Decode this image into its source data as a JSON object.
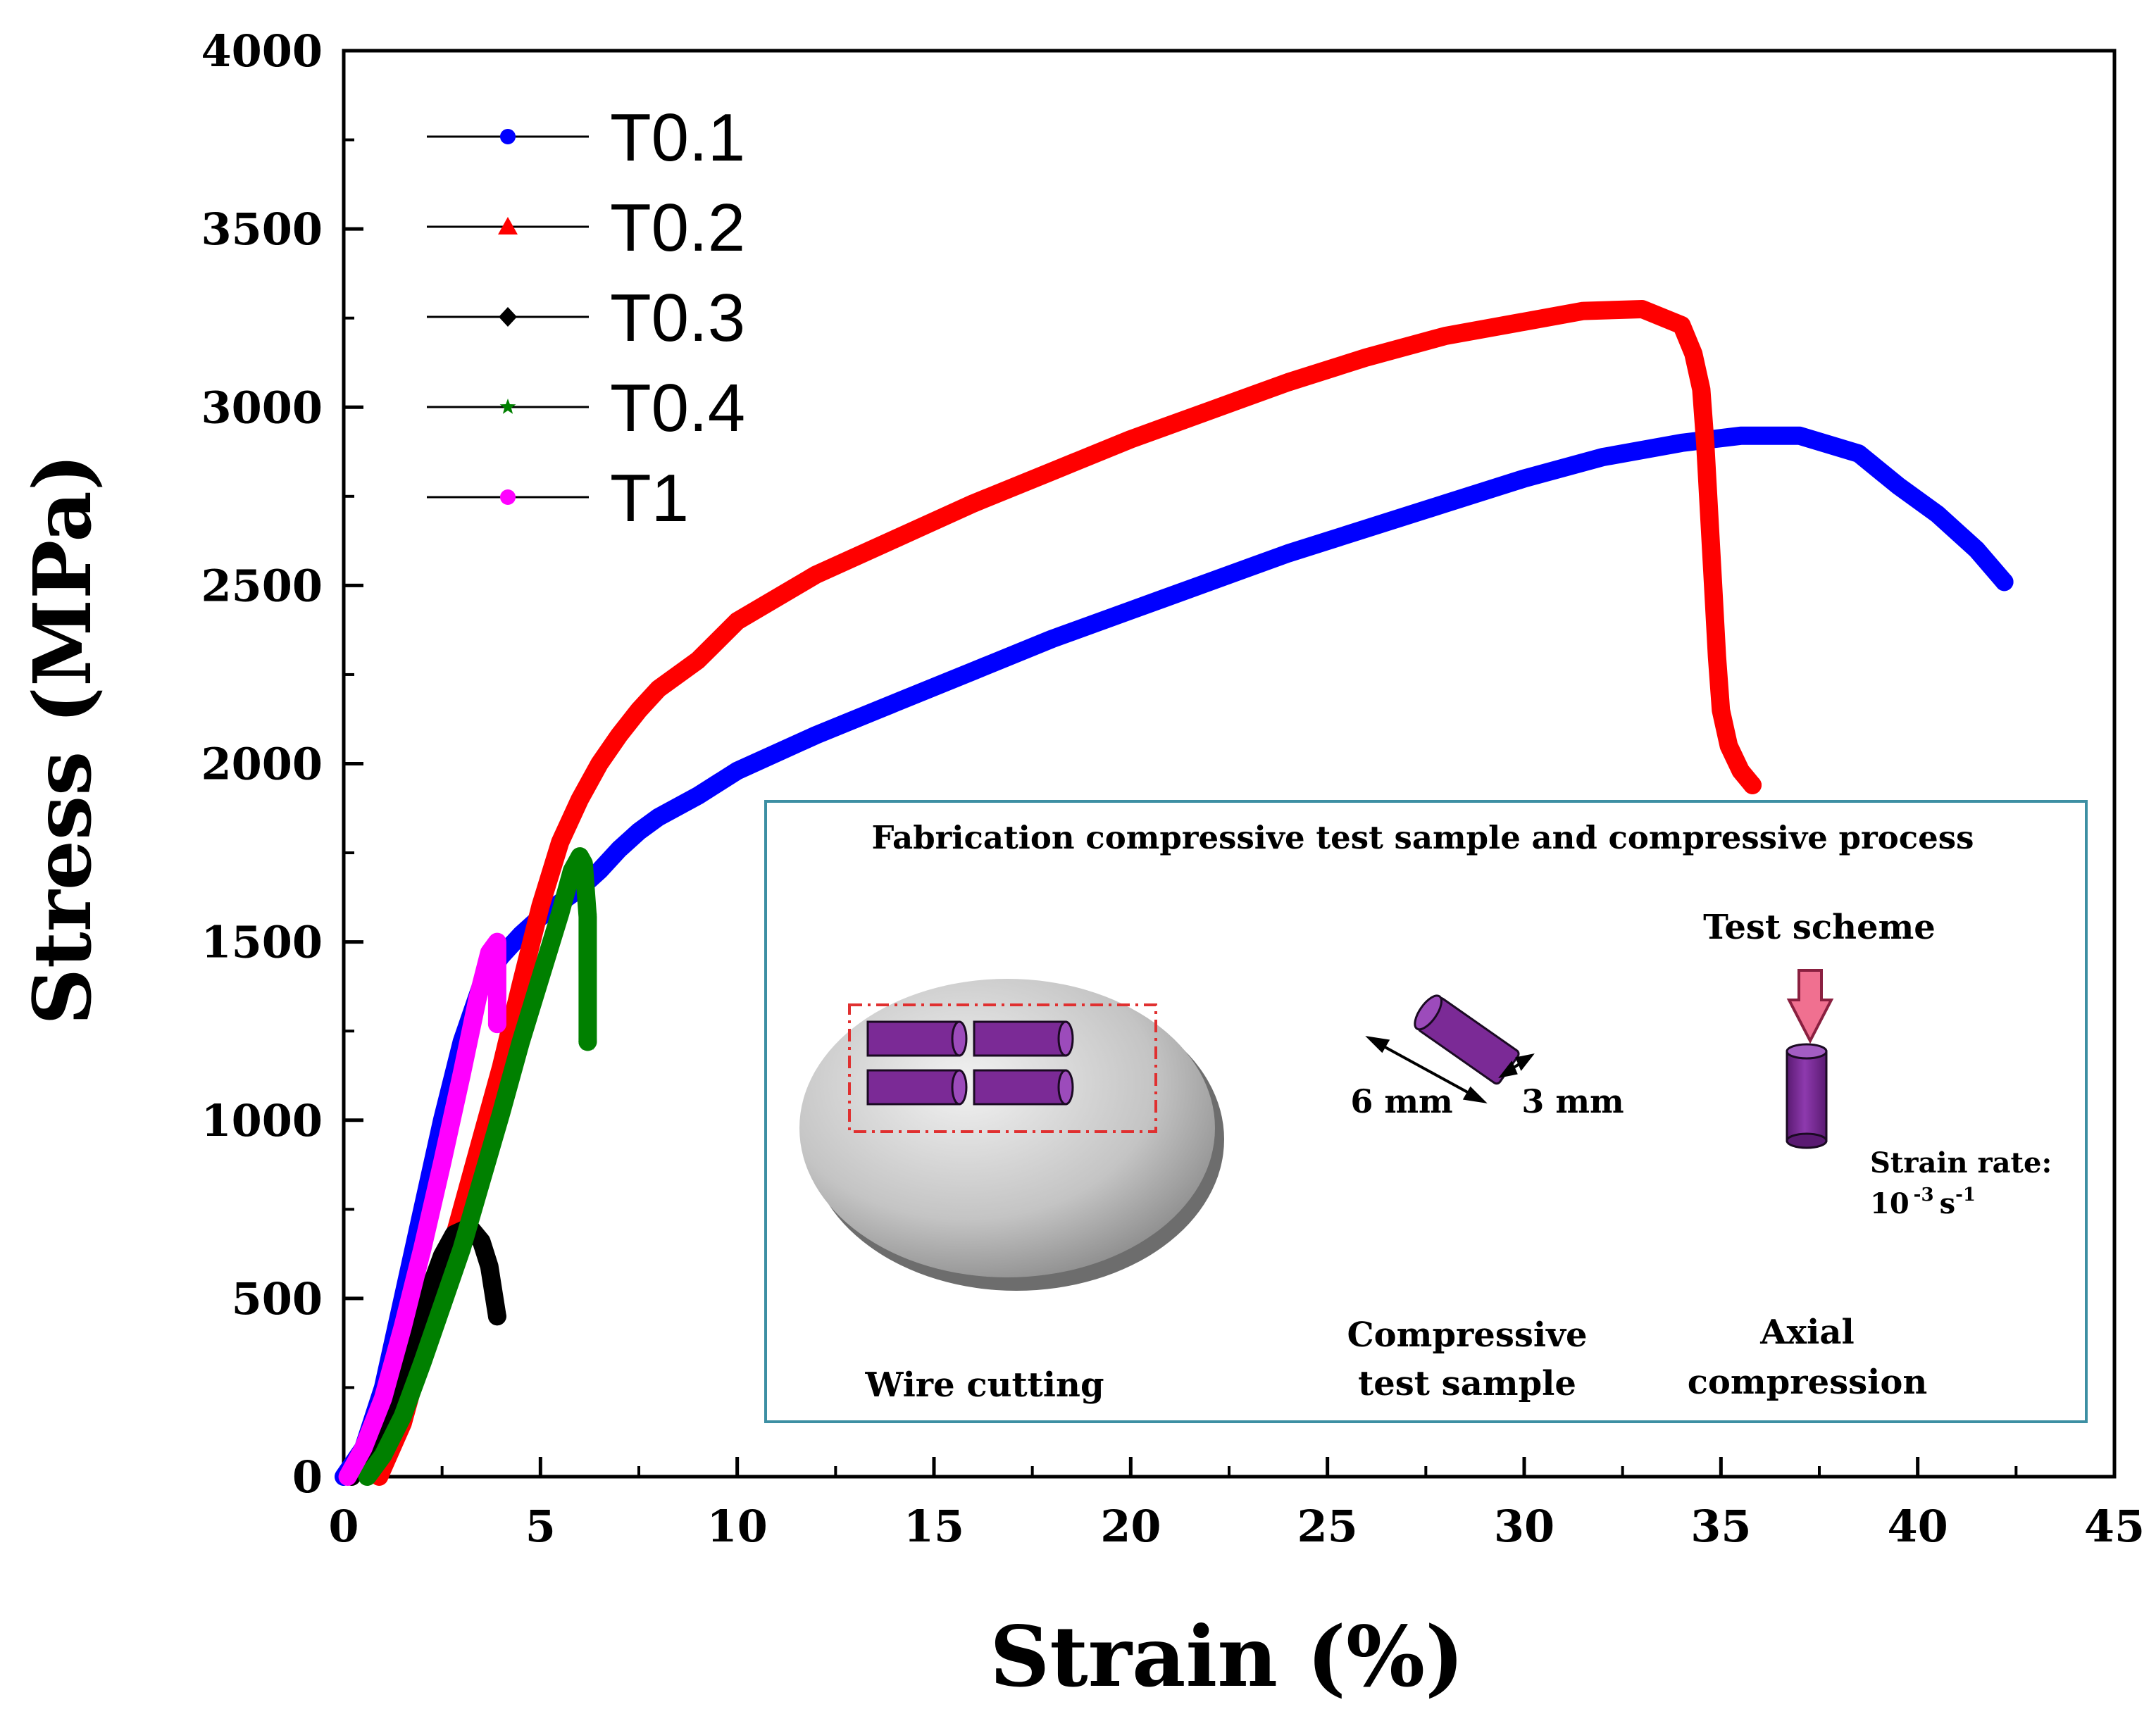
{
  "chart_data": {
    "type": "line",
    "title": "",
    "xlabel": "Strain (%)",
    "ylabel": "Stress (MPa)",
    "xlim": [
      0,
      45
    ],
    "ylim": [
      0,
      4000
    ],
    "x_ticks": [
      0,
      5,
      10,
      15,
      20,
      25,
      30,
      35,
      40,
      45
    ],
    "y_ticks": [
      0,
      500,
      1000,
      1500,
      2000,
      2500,
      3000,
      3500,
      4000
    ],
    "legend_position": "top-left",
    "series": [
      {
        "name": "T0.1",
        "color": "#0000ff",
        "marker": "circle",
        "points": [
          [
            0,
            0
          ],
          [
            0.5,
            80
          ],
          [
            1,
            250
          ],
          [
            1.5,
            500
          ],
          [
            2,
            750
          ],
          [
            2.5,
            1000
          ],
          [
            3,
            1220
          ],
          [
            3.5,
            1380
          ],
          [
            4,
            1460
          ],
          [
            4.5,
            1520
          ],
          [
            5,
            1570
          ],
          [
            5.5,
            1610
          ],
          [
            6,
            1650
          ],
          [
            6.5,
            1700
          ],
          [
            7,
            1760
          ],
          [
            7.5,
            1810
          ],
          [
            8,
            1850
          ],
          [
            9,
            1910
          ],
          [
            10,
            1980
          ],
          [
            12,
            2080
          ],
          [
            14,
            2170
          ],
          [
            16,
            2260
          ],
          [
            18,
            2350
          ],
          [
            20,
            2430
          ],
          [
            22,
            2510
          ],
          [
            24,
            2590
          ],
          [
            26,
            2660
          ],
          [
            28,
            2730
          ],
          [
            30,
            2800
          ],
          [
            32,
            2860
          ],
          [
            34,
            2900
          ],
          [
            35.5,
            2920
          ],
          [
            37,
            2920
          ],
          [
            38.5,
            2870
          ],
          [
            39.5,
            2780
          ],
          [
            40.5,
            2700
          ],
          [
            41.5,
            2600
          ],
          [
            42.2,
            2510
          ]
        ]
      },
      {
        "name": "T0.2",
        "color": "#ff0000",
        "marker": "triangle",
        "points": [
          [
            0.9,
            0
          ],
          [
            1.5,
            150
          ],
          [
            2,
            350
          ],
          [
            2.5,
            550
          ],
          [
            3,
            750
          ],
          [
            3.5,
            950
          ],
          [
            4,
            1150
          ],
          [
            4.5,
            1380
          ],
          [
            5,
            1600
          ],
          [
            5.5,
            1780
          ],
          [
            6,
            1900
          ],
          [
            6.5,
            2000
          ],
          [
            7,
            2080
          ],
          [
            7.5,
            2150
          ],
          [
            8,
            2210
          ],
          [
            9,
            2290
          ],
          [
            10,
            2400
          ],
          [
            12,
            2530
          ],
          [
            14,
            2630
          ],
          [
            16,
            2730
          ],
          [
            18,
            2820
          ],
          [
            20,
            2910
          ],
          [
            22,
            2990
          ],
          [
            24,
            3070
          ],
          [
            26,
            3140
          ],
          [
            28,
            3200
          ],
          [
            30,
            3240
          ],
          [
            31.5,
            3270
          ],
          [
            33,
            3275
          ],
          [
            34,
            3230
          ],
          [
            34.3,
            3150
          ],
          [
            34.5,
            3050
          ],
          [
            34.6,
            2900
          ],
          [
            34.7,
            2700
          ],
          [
            34.8,
            2500
          ],
          [
            34.9,
            2300
          ],
          [
            35,
            2150
          ],
          [
            35.2,
            2050
          ],
          [
            35.5,
            1980
          ],
          [
            35.8,
            1940
          ]
        ]
      },
      {
        "name": "T0.3",
        "color": "#000000",
        "marker": "diamond",
        "points": [
          [
            0.2,
            0
          ],
          [
            0.5,
            60
          ],
          [
            1,
            170
          ],
          [
            1.5,
            300
          ],
          [
            2,
            470
          ],
          [
            2.5,
            620
          ],
          [
            2.8,
            680
          ],
          [
            3.2,
            700
          ],
          [
            3.5,
            660
          ],
          [
            3.7,
            590
          ],
          [
            3.8,
            520
          ],
          [
            3.9,
            450
          ]
        ]
      },
      {
        "name": "T0.4",
        "color": "#008000",
        "marker": "star",
        "points": [
          [
            0.6,
            0
          ],
          [
            1,
            60
          ],
          [
            1.5,
            170
          ],
          [
            2,
            320
          ],
          [
            2.5,
            480
          ],
          [
            3,
            640
          ],
          [
            3.5,
            830
          ],
          [
            4,
            1020
          ],
          [
            4.5,
            1220
          ],
          [
            5,
            1400
          ],
          [
            5.5,
            1580
          ],
          [
            5.8,
            1700
          ],
          [
            6,
            1740
          ],
          [
            6.1,
            1720
          ],
          [
            6.2,
            1570
          ],
          [
            6.2,
            1410
          ],
          [
            6.2,
            1220
          ]
        ]
      },
      {
        "name": "T1",
        "color": "#ff00ff",
        "marker": "circle",
        "points": [
          [
            0.1,
            0
          ],
          [
            0.5,
            80
          ],
          [
            1,
            220
          ],
          [
            1.5,
            420
          ],
          [
            2,
            640
          ],
          [
            2.5,
            880
          ],
          [
            3,
            1130
          ],
          [
            3.4,
            1340
          ],
          [
            3.7,
            1470
          ],
          [
            3.9,
            1500
          ],
          [
            3.9,
            1270
          ]
        ]
      }
    ]
  },
  "inset": {
    "title": "Fabrication compressive test sample and compressive process",
    "wire_cutting_label": "Wire cutting",
    "dim_length": "6 mm",
    "dim_diameter": "3 mm",
    "sample_label_line1": "Compressive",
    "sample_label_line2": "test sample",
    "test_scheme_label": "Test scheme",
    "strain_rate_label": "Strain rate:",
    "strain_rate_base": "10",
    "strain_rate_exp1": "-3",
    "strain_rate_unit": "s",
    "strain_rate_exp2": "-1",
    "axial_label_line1": "Axial",
    "axial_label_line2": "compression",
    "colors": {
      "border": "#3d8fa3",
      "sample": "#7b2a96",
      "plate": "#bdbdbd",
      "cut_box": "#e03030",
      "arrow": "#f07090"
    }
  }
}
